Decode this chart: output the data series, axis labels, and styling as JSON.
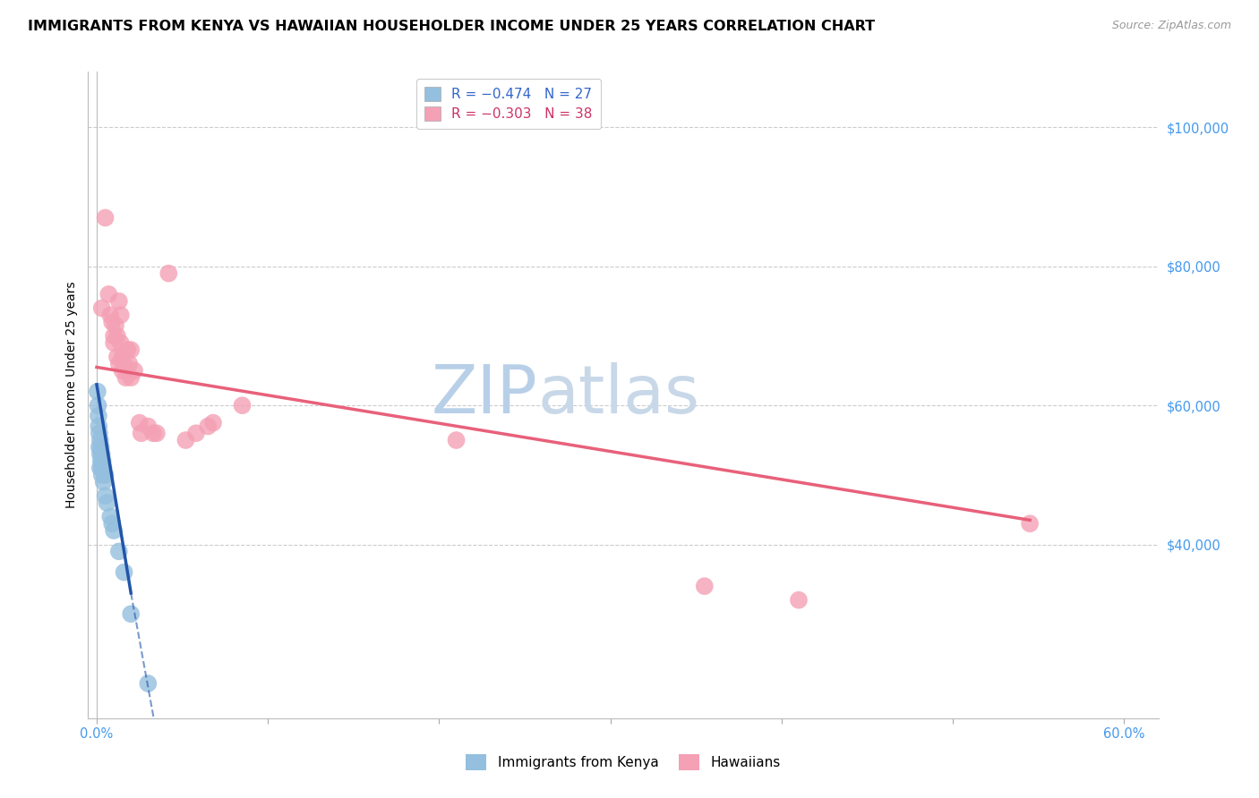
{
  "title": "IMMIGRANTS FROM KENYA VS HAWAIIAN HOUSEHOLDER INCOME UNDER 25 YEARS CORRELATION CHART",
  "source": "Source: ZipAtlas.com",
  "ylabel": "Householder Income Under 25 years",
  "xlim": [
    -0.005,
    0.62
  ],
  "ylim": [
    15000,
    108000
  ],
  "xticks": [
    0.0,
    0.1,
    0.2,
    0.3,
    0.4,
    0.5,
    0.6
  ],
  "xtick_labels": [
    "0.0%",
    "",
    "",
    "",
    "",
    "",
    "60.0%"
  ],
  "yticks": [
    40000,
    60000,
    80000,
    100000
  ],
  "watermark_zip": "ZIP",
  "watermark_atlas": "atlas",
  "kenya_color": "#94bfde",
  "hawaii_color": "#f4a0b5",
  "kenya_line_color": "#2255aa",
  "hawaii_line_color": "#e8607a",
  "kenya_scatter": [
    [
      0.0005,
      62000
    ],
    [
      0.0008,
      60000
    ],
    [
      0.001,
      58500
    ],
    [
      0.0012,
      57000
    ],
    [
      0.0015,
      56000
    ],
    [
      0.0015,
      54000
    ],
    [
      0.002,
      55000
    ],
    [
      0.002,
      53000
    ],
    [
      0.002,
      51000
    ],
    [
      0.0025,
      54000
    ],
    [
      0.0025,
      52000
    ],
    [
      0.003,
      53000
    ],
    [
      0.003,
      51000
    ],
    [
      0.003,
      50000
    ],
    [
      0.0035,
      52000
    ],
    [
      0.004,
      51000
    ],
    [
      0.004,
      49000
    ],
    [
      0.005,
      50000
    ],
    [
      0.005,
      47000
    ],
    [
      0.006,
      46000
    ],
    [
      0.008,
      44000
    ],
    [
      0.009,
      43000
    ],
    [
      0.01,
      42000
    ],
    [
      0.013,
      39000
    ],
    [
      0.016,
      36000
    ],
    [
      0.02,
      30000
    ],
    [
      0.03,
      20000
    ]
  ],
  "hawaii_scatter": [
    [
      0.003,
      74000
    ],
    [
      0.005,
      87000
    ],
    [
      0.007,
      76000
    ],
    [
      0.008,
      73000
    ],
    [
      0.009,
      72000
    ],
    [
      0.01,
      70000
    ],
    [
      0.01,
      69000
    ],
    [
      0.011,
      71500
    ],
    [
      0.012,
      70000
    ],
    [
      0.012,
      67000
    ],
    [
      0.013,
      75000
    ],
    [
      0.013,
      66000
    ],
    [
      0.014,
      73000
    ],
    [
      0.014,
      69000
    ],
    [
      0.015,
      67000
    ],
    [
      0.015,
      65000
    ],
    [
      0.016,
      66000
    ],
    [
      0.017,
      64000
    ],
    [
      0.018,
      68000
    ],
    [
      0.019,
      66000
    ],
    [
      0.02,
      68000
    ],
    [
      0.02,
      64000
    ],
    [
      0.022,
      65000
    ],
    [
      0.025,
      57500
    ],
    [
      0.026,
      56000
    ],
    [
      0.03,
      57000
    ],
    [
      0.033,
      56000
    ],
    [
      0.035,
      56000
    ],
    [
      0.042,
      79000
    ],
    [
      0.052,
      55000
    ],
    [
      0.058,
      56000
    ],
    [
      0.065,
      57000
    ],
    [
      0.068,
      57500
    ],
    [
      0.085,
      60000
    ],
    [
      0.21,
      55000
    ],
    [
      0.355,
      34000
    ],
    [
      0.41,
      32000
    ],
    [
      0.545,
      43000
    ]
  ],
  "kenya_trendline_solid": [
    [
      0.0,
      63000
    ],
    [
      0.02,
      33000
    ]
  ],
  "kenya_trendline_dashed": [
    [
      0.02,
      33000
    ],
    [
      0.037,
      10000
    ]
  ],
  "hawaii_trendline": [
    [
      0.0,
      65500
    ],
    [
      0.545,
      43500
    ]
  ],
  "background_color": "#ffffff",
  "grid_color": "#cccccc",
  "title_fontsize": 11.5,
  "axis_label_fontsize": 10,
  "tick_fontsize": 10.5,
  "watermark_fontsize_zip": 54,
  "watermark_fontsize_atlas": 54,
  "watermark_color_zip": "#b8cfe8",
  "watermark_color_atlas": "#c8d8e8",
  "legend1_label1": "R = −0.474   N = 27",
  "legend1_label2": "R = −0.303   N = 38",
  "legend2_label1": "Immigrants from Kenya",
  "legend2_label2": "Hawaiians"
}
